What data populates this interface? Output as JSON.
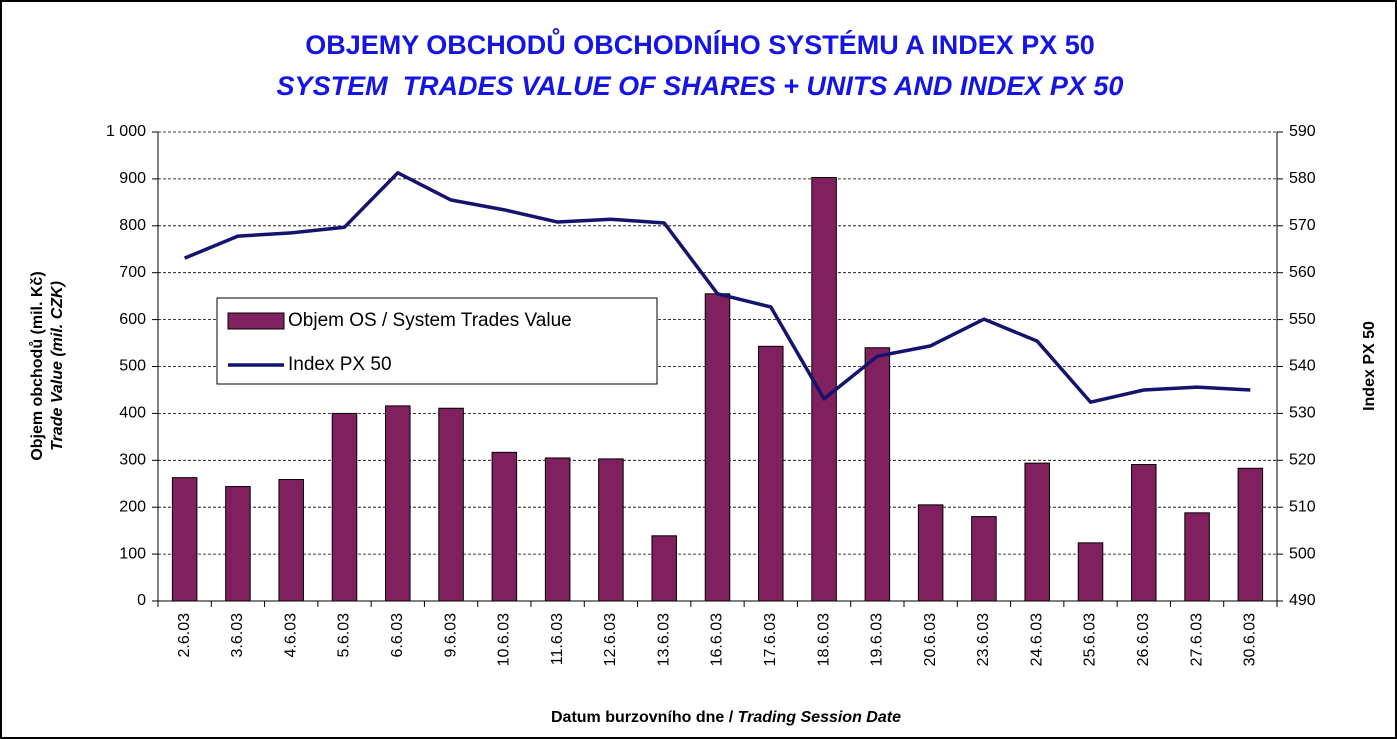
{
  "chart_data": {
    "type": "bar",
    "title": "OBJEMY OBCHODŮ OBCHODNÍHO SYSTÉMU A INDEX PX 50",
    "subtitle": "SYSTEM  TRADES VALUE OF SHARES + UNITS AND INDEX PX 50",
    "y_label": [
      "Objem obchodů (mil. Kč)",
      "Trade Value (mil. CZK)"
    ],
    "y2_label": "Index PX 50",
    "x_label": [
      "Datum burzovního dne / ",
      "Trading Session Date"
    ],
    "categories": [
      "2.6.03",
      "3.6.03",
      "4.6.03",
      "5.6.03",
      "6.6.03",
      "9.6.03",
      "10.6.03",
      "11.6.03",
      "12.6.03",
      "13.6.03",
      "16.6.03",
      "17.6.03",
      "18.6.03",
      "19.6.03",
      "20.6.03",
      "23.6.03",
      "24.6.03",
      "25.6.03",
      "26.6.03",
      "27.6.03",
      "30.6.03"
    ],
    "series": [
      {
        "name": "Objem OS / System Trades Value",
        "type": "bar",
        "color": "#80205f",
        "values": [
          263,
          244,
          259,
          400,
          416,
          411,
          317,
          305,
          303,
          139,
          655,
          543,
          903,
          540,
          205,
          180,
          294,
          124,
          291,
          188,
          283
        ]
      },
      {
        "name": "Index PX 50",
        "type": "line",
        "axis": "y2",
        "color": "#14146e",
        "values": [
          563.1,
          567.8,
          568.5,
          569.7,
          581.3,
          575.5,
          573.4,
          570.8,
          571.4,
          570.6,
          555.5,
          552.7,
          533.1,
          542.2,
          544.4,
          550.1,
          545.4,
          532.4,
          535.0,
          535.6,
          535.0
        ]
      }
    ],
    "ylim": [
      0,
      1000
    ],
    "yticks": [
      0,
      100,
      200,
      300,
      400,
      500,
      600,
      700,
      800,
      900,
      {
        "value": 1000,
        "label": "1 000"
      }
    ],
    "y2lim": [
      490,
      590
    ],
    "y2ticks": [
      490,
      500,
      510,
      520,
      530,
      540,
      550,
      560,
      570,
      580,
      590
    ],
    "grid": true,
    "legend": "left"
  }
}
